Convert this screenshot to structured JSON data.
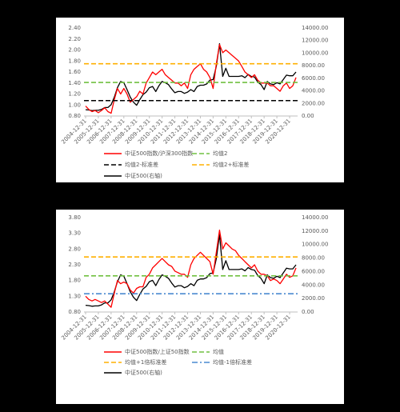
{
  "chart_data": [
    {
      "type": "line",
      "categories": [
        "2004-12-31",
        null,
        null,
        null,
        "2005-12-31",
        null,
        null,
        null,
        "2006-12-31",
        null,
        null,
        null,
        "2007-12-31",
        null,
        null,
        null,
        "2008-12-31",
        null,
        null,
        null,
        "2009-12-31",
        null,
        null,
        null,
        "2010-12-31",
        null,
        null,
        null,
        "2011-12-31",
        null,
        null,
        null,
        "2012-12-31",
        null,
        null,
        null,
        "2013-12-31",
        null,
        null,
        null,
        "2014-12-31",
        null,
        null,
        null,
        "2015-12-31",
        null,
        null,
        null,
        "2016-12-31",
        null,
        null,
        null,
        "2017-12-31",
        null,
        null,
        null,
        "2018-12-31",
        null,
        null,
        null,
        "2019-12-31",
        null,
        null,
        null,
        "2020-12-31",
        null,
        null
      ],
      "ylim": [
        0.8,
        2.4
      ],
      "yticks": [
        {
          "value": 0.8,
          "label": "0.80"
        },
        {
          "value": 1.0,
          "label": "1.00"
        },
        {
          "value": 1.2,
          "label": "1.20"
        },
        {
          "value": 1.4,
          "label": "1.40"
        },
        {
          "value": 1.6,
          "label": "1.60"
        },
        {
          "value": 1.8,
          "label": "1.80"
        },
        {
          "value": 2.0,
          "label": "2.00"
        },
        {
          "value": 2.2,
          "label": "2.20"
        },
        {
          "value": 2.4,
          "label": "2.40"
        }
      ],
      "y2lim": [
        0,
        14000
      ],
      "y2ticks": [
        {
          "value": 0,
          "label": "0.00"
        },
        {
          "value": 2000,
          "label": "2000.00"
        },
        {
          "value": 4000,
          "label": "4000.00"
        },
        {
          "value": 6000,
          "label": "6000.00"
        },
        {
          "value": 8000,
          "label": "8000.00"
        },
        {
          "value": 10000,
          "label": "10000.00"
        },
        {
          "value": 12000,
          "label": "12000.00"
        },
        {
          "value": 14000,
          "label": "14000.00"
        }
      ],
      "series": [
        {
          "name": "中证500指数/沪深300指数",
          "color": "#ff0000",
          "values": [
            0.98,
            0.92,
            0.88,
            0.9,
            0.86,
            0.9,
            0.95,
            0.88,
            0.85,
            1.1,
            1.3,
            1.2,
            1.3,
            1.2,
            1.05,
            1.1,
            1.15,
            1.25,
            1.2,
            1.4,
            1.5,
            1.6,
            1.55,
            1.6,
            1.65,
            1.55,
            1.5,
            1.45,
            1.4,
            1.4,
            1.35,
            1.4,
            1.3,
            1.55,
            1.65,
            1.7,
            1.75,
            1.65,
            1.6,
            1.5,
            1.3,
            1.75,
            2.1,
            1.95,
            2.0,
            1.95,
            1.9,
            1.85,
            1.8,
            1.7,
            1.6,
            1.55,
            1.5,
            1.55,
            1.45,
            1.4,
            1.4,
            1.4,
            1.35,
            1.35,
            1.3,
            1.25,
            1.35,
            1.4,
            1.3,
            1.35,
            1.5
          ]
        },
        {
          "name": "均值2",
          "color": "#70c040",
          "value": 1.41,
          "dash": "dashed"
        },
        {
          "name": "均值2-标准差",
          "color": "#000000",
          "value": 1.08,
          "dash": "dashed"
        },
        {
          "name": "均值2+标准差",
          "color": "#ffb000",
          "value": 1.75,
          "dash": "dashed"
        },
        {
          "name": "中证500(右轴)",
          "color": "#000000",
          "axis": "y2",
          "values": [
            1000,
            950,
            850,
            900,
            900,
            1050,
            1350,
            1350,
            1800,
            3000,
            4500,
            5500,
            5300,
            4200,
            3000,
            2200,
            1700,
            2600,
            3400,
            3800,
            4500,
            4700,
            3900,
            4800,
            5500,
            5300,
            5000,
            4300,
            3700,
            3900,
            3900,
            3600,
            3800,
            4200,
            3900,
            4700,
            4900,
            4900,
            5100,
            5700,
            5800,
            7900,
            11500,
            6300,
            7600,
            6300,
            6300,
            6300,
            6300,
            6400,
            6100,
            6600,
            6300,
            6200,
            5400,
            5000,
            4200,
            5500,
            5100,
            5000,
            5300,
            5100,
            5800,
            6500,
            6400,
            6400,
            7000
          ]
        }
      ]
    },
    {
      "type": "line",
      "categories": [
        "2004-12-31",
        null,
        null,
        null,
        "2005-12-31",
        null,
        null,
        null,
        "2006-12-31",
        null,
        null,
        null,
        "2007-12-31",
        null,
        null,
        null,
        "2008-12-31",
        null,
        null,
        null,
        "2009-12-31",
        null,
        null,
        null,
        "2010-12-31",
        null,
        null,
        null,
        "2011-12-31",
        null,
        null,
        null,
        "2012-12-31",
        null,
        null,
        null,
        "2013-12-31",
        null,
        null,
        null,
        "2014-12-31",
        null,
        null,
        null,
        "2015-12-31",
        null,
        null,
        null,
        "2016-12-31",
        null,
        null,
        null,
        "2017-12-31",
        null,
        null,
        null,
        "2018-12-31",
        null,
        null,
        null,
        "2019-12-31",
        null,
        null,
        null,
        "2020-12-31",
        null,
        null
      ],
      "ylim": [
        0.8,
        3.8
      ],
      "yticks": [
        {
          "value": 0.8,
          "label": "0.80"
        },
        {
          "value": 1.3,
          "label": "1.30"
        },
        {
          "value": 1.8,
          "label": "1.80"
        },
        {
          "value": 2.3,
          "label": "2.30"
        },
        {
          "value": 2.8,
          "label": "2.80"
        },
        {
          "value": 3.3,
          "label": "3.30"
        },
        {
          "value": 3.8,
          "label": "3.80"
        }
      ],
      "y2lim": [
        0,
        14000
      ],
      "y2ticks": [
        {
          "value": 0,
          "label": "0.00"
        },
        {
          "value": 2000,
          "label": "2000.00"
        },
        {
          "value": 4000,
          "label": "4000.00"
        },
        {
          "value": 6000,
          "label": "6000.00"
        },
        {
          "value": 8000,
          "label": "8000.00"
        },
        {
          "value": 10000,
          "label": "10000.00"
        },
        {
          "value": 12000,
          "label": "12000.00"
        },
        {
          "value": 14000,
          "label": "14000.00"
        }
      ],
      "series": [
        {
          "name": "中证500指数/上证50指数",
          "color": "#ff0000",
          "values": [
            1.3,
            1.2,
            1.15,
            1.2,
            1.15,
            1.1,
            1.15,
            1.05,
            0.95,
            1.4,
            1.8,
            1.7,
            1.75,
            1.7,
            1.5,
            1.4,
            1.55,
            1.6,
            1.6,
            1.9,
            2.0,
            2.2,
            2.3,
            2.4,
            2.5,
            2.4,
            2.3,
            2.25,
            2.1,
            2.05,
            2.0,
            2.0,
            1.9,
            2.3,
            2.5,
            2.6,
            2.7,
            2.6,
            2.5,
            2.4,
            2.0,
            2.7,
            3.4,
            2.8,
            3.0,
            2.9,
            2.8,
            2.75,
            2.6,
            2.5,
            2.4,
            2.3,
            2.2,
            2.3,
            2.1,
            2.0,
            2.0,
            1.95,
            1.8,
            1.85,
            1.8,
            1.7,
            1.85,
            2.0,
            1.9,
            1.95,
            2.2
          ]
        },
        {
          "name": "均值",
          "color": "#70c040",
          "value": 1.95,
          "dash": "dashed"
        },
        {
          "name": "均值+1倍标准差",
          "color": "#ffb000",
          "value": 2.55,
          "dash": "dashed"
        },
        {
          "name": "均值-1倍标准差",
          "color": "#4a8ad0",
          "value": 1.38,
          "dash": "dashdot"
        },
        {
          "name": "中证500(右轴)",
          "color": "#000000",
          "axis": "y2",
          "values": [
            1000,
            950,
            850,
            900,
            900,
            1050,
            1350,
            1350,
            1800,
            3000,
            4500,
            5500,
            5300,
            4200,
            3000,
            2200,
            1700,
            2600,
            3400,
            3800,
            4500,
            4700,
            3900,
            4800,
            5500,
            5300,
            5000,
            4300,
            3700,
            3900,
            3900,
            3600,
            3800,
            4200,
            3900,
            4700,
            4900,
            4900,
            5100,
            5700,
            5800,
            7900,
            11500,
            6300,
            7600,
            6300,
            6300,
            6300,
            6300,
            6400,
            6100,
            6600,
            6300,
            6200,
            5400,
            5000,
            4200,
            5500,
            5100,
            5000,
            5300,
            5100,
            5800,
            6500,
            6400,
            6400,
            7000
          ]
        }
      ]
    }
  ]
}
